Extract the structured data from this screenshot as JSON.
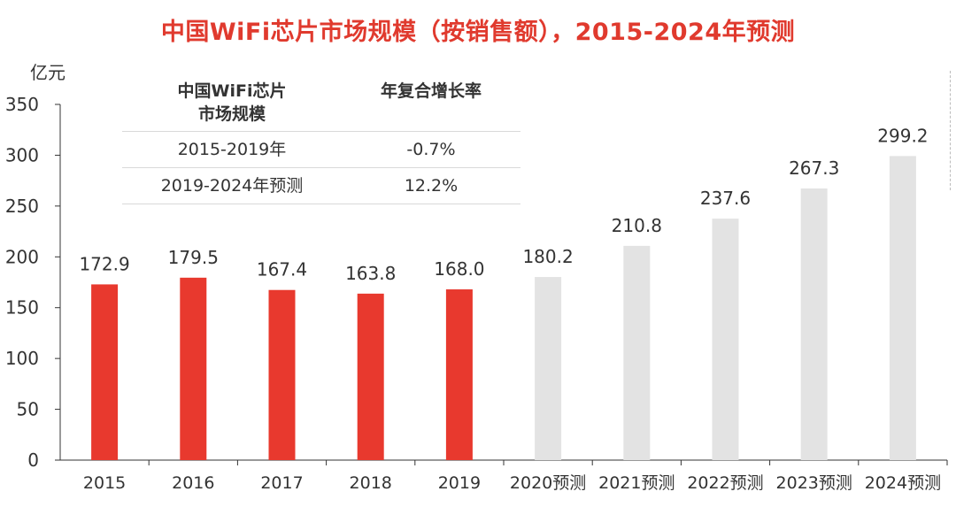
{
  "title": "中国WiFi芯片市场规模（按销售额），2015-2024年预测",
  "unit_label": "亿元",
  "cagr_table": {
    "header": [
      "中国WiFi芯片\n市场规模",
      "年复合增长率"
    ],
    "rows": [
      {
        "period": "2015-2019年",
        "rate": "-0.7%"
      },
      {
        "period": "2019-2024年预测",
        "rate": "12.2%"
      }
    ]
  },
  "chart_data": {
    "type": "bar",
    "categories": [
      "2015",
      "2016",
      "2017",
      "2018",
      "2019",
      "2020预测",
      "2021预测",
      "2022预测",
      "2023预测",
      "2024预测"
    ],
    "values": [
      172.9,
      179.5,
      167.4,
      163.8,
      168.0,
      180.2,
      210.8,
      237.6,
      267.3,
      299.2
    ],
    "value_labels": [
      "172.9",
      "179.5",
      "167.4",
      "163.8",
      "168.0",
      "180.2",
      "210.8",
      "237.6",
      "267.3",
      "299.2"
    ],
    "title": "中国WiFi芯片市场规模（按销售额），2015-2024年预测",
    "ylabel": "亿元",
    "ylim": [
      0,
      350
    ],
    "yticks": [
      0,
      50,
      100,
      150,
      200,
      250,
      300,
      350
    ],
    "grid": false,
    "colors": {
      "actual": "#e8392e",
      "forecast": "#e3e3e3"
    },
    "forecast_from_index": 5
  }
}
